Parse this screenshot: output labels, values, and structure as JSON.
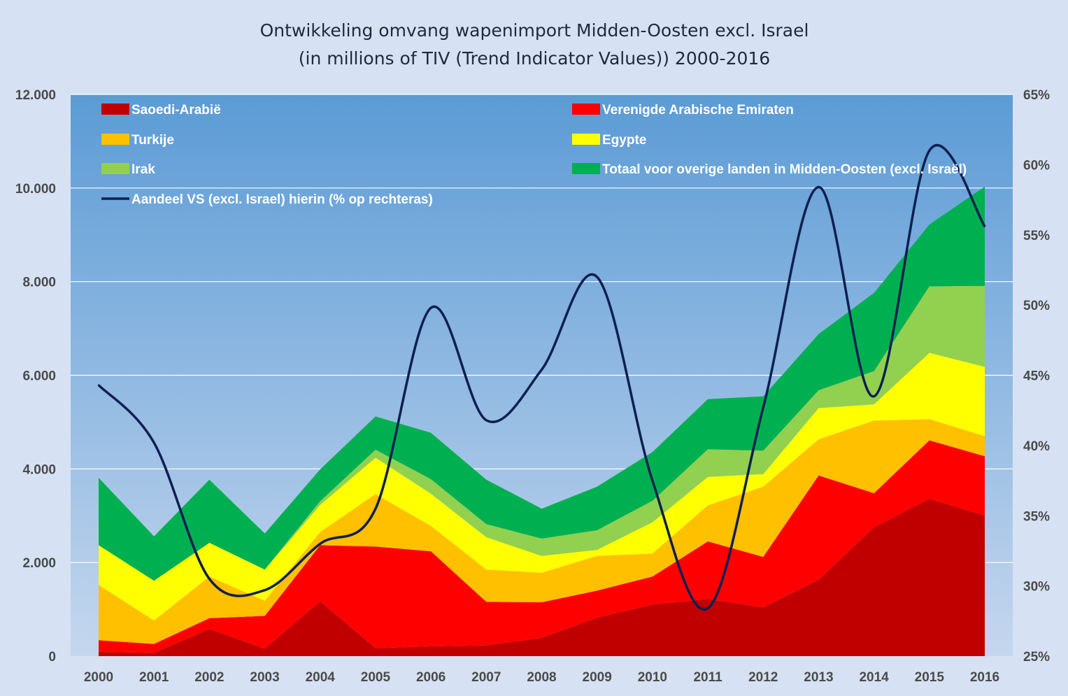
{
  "chart_data": {
    "type": "area",
    "title": "Ontwikkeling omvang wapenimport Midden-Oosten excl. Israel",
    "subtitle": "(in millions of  TIV (Trend Indicator Values))  2000-2016",
    "x": [
      "2000",
      "2001",
      "2002",
      "2003",
      "2004",
      "2005",
      "2006",
      "2007",
      "2008",
      "2009",
      "2010",
      "2011",
      "2012",
      "2013",
      "2014",
      "2015",
      "2016"
    ],
    "y_left": {
      "min": 0,
      "max": 12000,
      "ticks": [
        "0",
        "2.000",
        "4.000",
        "6.000",
        "8.000",
        "10.000",
        "12.000"
      ],
      "tick_values": [
        0,
        2000,
        4000,
        6000,
        8000,
        10000,
        12000
      ]
    },
    "y_right": {
      "min": 25,
      "max": 65,
      "ticks": [
        "25%",
        "30%",
        "35%",
        "40%",
        "45%",
        "50%",
        "55%",
        "60%",
        "65%"
      ],
      "tick_values": [
        25,
        30,
        35,
        40,
        45,
        50,
        55,
        60,
        65
      ]
    },
    "grid": true,
    "legend_position": "top, inside plot area",
    "stacked_series": [
      {
        "name": "Saoedi-Arabië",
        "color": "#c00000",
        "values": [
          90,
          70,
          580,
          160,
          1170,
          170,
          210,
          230,
          390,
          820,
          1100,
          1220,
          1040,
          1630,
          2750,
          3360,
          3000
        ]
      },
      {
        "name": "Verenigde Arabische Emiraten",
        "color": "#ff0000",
        "values": [
          250,
          190,
          230,
          700,
          1200,
          2170,
          2030,
          930,
          760,
          580,
          600,
          1230,
          1080,
          2230,
          730,
          1250,
          1270
        ]
      },
      {
        "name": "Turkije",
        "color": "#ffc000",
        "values": [
          1180,
          500,
          890,
          320,
          280,
          1120,
          540,
          690,
          630,
          740,
          490,
          770,
          1500,
          770,
          1550,
          450,
          430
        ]
      },
      {
        "name": "Egypte",
        "color": "#ffff00",
        "values": [
          850,
          850,
          720,
          670,
          580,
          780,
          690,
          690,
          360,
          130,
          670,
          610,
          270,
          670,
          350,
          1420,
          1480
        ]
      },
      {
        "name": "Irak",
        "color": "#92d050",
        "values": [
          0,
          0,
          0,
          0,
          80,
          170,
          310,
          280,
          370,
          420,
          460,
          590,
          500,
          380,
          710,
          1420,
          1730
        ]
      },
      {
        "name": "Totaal voor overige landen in Midden-Oosten (excl. Israël)",
        "color": "#00b050",
        "values": [
          1440,
          950,
          1350,
          770,
          680,
          710,
          990,
          950,
          640,
          930,
          1040,
          1070,
          1160,
          1200,
          1670,
          1320,
          2120
        ]
      }
    ],
    "line_series": {
      "name": "Aandeel VS (excl. Israel) hierin (% op rechteras)",
      "color": "#0d1f52",
      "axis": "right",
      "values": [
        44.3,
        40.2,
        30.5,
        29.7,
        33.0,
        35.5,
        49.8,
        41.8,
        45.4,
        52.0,
        37.5,
        28.4,
        42.7,
        58.4,
        43.5,
        61.0,
        55.6
      ]
    }
  }
}
